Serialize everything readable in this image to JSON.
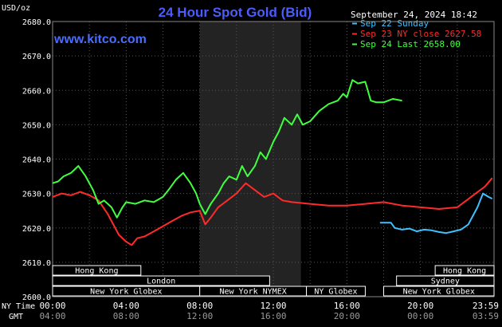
{
  "chart_data": {
    "type": "line",
    "title": "24 Hour Spot Gold (Bid)",
    "website": "www.kitco.com",
    "unit_label": "USD/oz",
    "timestamp": "September 24, 2024 18:42",
    "ylim": [
      2600,
      2680
    ],
    "y_ticks": [
      "2680.0",
      "2670.0",
      "2660.0",
      "2650.0",
      "2640.0",
      "2630.0",
      "2620.0",
      "2610.0",
      "2600.0"
    ],
    "xlim": [
      0,
      24
    ],
    "x_ticks": [
      {
        "hour": 0,
        "ny": "00:00",
        "gmt": "04:00"
      },
      {
        "hour": 4,
        "ny": "04:00",
        "gmt": "08:00"
      },
      {
        "hour": 8,
        "ny": "08:00",
        "gmt": "12:00"
      },
      {
        "hour": 12,
        "ny": "12:00",
        "gmt": "16:00"
      },
      {
        "hour": 16,
        "ny": "16:00",
        "gmt": "20:00"
      },
      {
        "hour": 20,
        "ny": "20:00",
        "gmt": "00:00"
      },
      {
        "hour": 24,
        "ny": "23:59",
        "gmt": "03:59"
      }
    ],
    "x_row_labels": {
      "ny": "NY Time",
      "gmt": "GMT"
    },
    "highlight_range": [
      8,
      13.5
    ],
    "grid": true,
    "legend_position": "top-right",
    "series": [
      {
        "name": "Sep 22 Sunday",
        "color": "#40c0ff",
        "x": [
          17.8,
          18.4,
          18.6,
          19.0,
          19.4,
          19.8,
          20.2,
          20.6,
          21.0,
          21.4,
          21.8,
          22.2,
          22.6,
          22.9,
          23.1,
          23.4,
          23.7,
          23.9
        ],
        "y": [
          2621.5,
          2621.5,
          2620.0,
          2619.5,
          2619.8,
          2619.0,
          2619.5,
          2619.3,
          2618.8,
          2618.5,
          2619.0,
          2619.5,
          2621.0,
          2624.0,
          2626.0,
          2630.0,
          2629.0,
          2628.5
        ]
      },
      {
        "name": "Sep 23 NY close 2627.58",
        "color": "#ff2a2a",
        "x": [
          0,
          0.5,
          1.0,
          1.5,
          2.0,
          2.5,
          3.0,
          3.3,
          3.6,
          4.0,
          4.3,
          4.6,
          5.0,
          5.5,
          6.0,
          6.5,
          7.0,
          7.5,
          8.0,
          8.3,
          8.6,
          9.0,
          9.5,
          10.0,
          10.5,
          11.0,
          11.5,
          12.0,
          12.5,
          13.0,
          14.0,
          15.0,
          16.0,
          17.0,
          18.0,
          19.0,
          20.0,
          21.0,
          22.0,
          22.5,
          23.0,
          23.5,
          23.9
        ],
        "y": [
          2629.0,
          2630.0,
          2629.5,
          2630.5,
          2629.5,
          2628.0,
          2624.0,
          2621.0,
          2618.0,
          2616.0,
          2615.0,
          2617.0,
          2617.5,
          2619.0,
          2620.5,
          2622.0,
          2623.5,
          2624.5,
          2625.0,
          2621.0,
          2623.0,
          2626.0,
          2628.0,
          2630.0,
          2633.0,
          2631.0,
          2629.0,
          2630.0,
          2628.0,
          2627.5,
          2627.0,
          2626.5,
          2626.5,
          2627.0,
          2627.5,
          2626.5,
          2626.0,
          2625.5,
          2626.0,
          2628.0,
          2630.0,
          2632.0,
          2634.5
        ]
      },
      {
        "name": "Sep 24 Last 2658.00",
        "color": "#40ff40",
        "x": [
          0,
          0.3,
          0.6,
          1.0,
          1.4,
          1.8,
          2.2,
          2.5,
          2.8,
          3.2,
          3.5,
          3.8,
          4.0,
          4.5,
          5.0,
          5.5,
          6.0,
          6.3,
          6.7,
          7.1,
          7.5,
          7.8,
          8.0,
          8.3,
          8.6,
          9.0,
          9.3,
          9.6,
          10.0,
          10.3,
          10.6,
          11.0,
          11.3,
          11.6,
          12.0,
          12.3,
          12.6,
          13.0,
          13.3,
          13.6,
          14.0,
          14.5,
          15.0,
          15.5,
          15.8,
          16.0,
          16.3,
          16.6,
          17.0,
          17.3,
          17.6,
          18.0,
          18.5,
          19.0
        ],
        "y": [
          2633.0,
          2633.5,
          2635.0,
          2636.0,
          2638.0,
          2635.0,
          2631.0,
          2627.0,
          2628.0,
          2626.0,
          2623.0,
          2626.0,
          2627.5,
          2627.0,
          2628.0,
          2627.5,
          2629.0,
          2631.0,
          2634.0,
          2636.0,
          2633.0,
          2630.0,
          2627.0,
          2624.0,
          2627.0,
          2630.0,
          2633.0,
          2635.0,
          2634.0,
          2638.0,
          2635.0,
          2638.0,
          2642.0,
          2640.0,
          2645.0,
          2648.0,
          2652.0,
          2650.0,
          2653.0,
          2650.0,
          2651.0,
          2654.0,
          2656.0,
          2657.0,
          2659.0,
          2658.0,
          2663.0,
          2662.0,
          2662.5,
          2657.0,
          2656.5,
          2656.5,
          2657.5,
          2657.0
        ]
      }
    ],
    "sessions": [
      {
        "label": "Hong Kong",
        "start": 0,
        "end": 4.8,
        "row": 0
      },
      {
        "label": "London",
        "start": 0,
        "end": 11.8,
        "row": 1
      },
      {
        "label": "New York Globex",
        "start": 0,
        "end": 8,
        "row": 2
      },
      {
        "label": "New York NYMEX",
        "start": 8,
        "end": 13.8,
        "row": 2
      },
      {
        "label": "NY Globex",
        "start": 13.8,
        "end": 17,
        "row": 2
      },
      {
        "label": "Hong Kong",
        "start": 20.8,
        "end": 24,
        "row": 0
      },
      {
        "label": "Sydney",
        "start": 18.7,
        "end": 24,
        "row": 1
      },
      {
        "label": "New York Globex",
        "start": 18,
        "end": 24,
        "row": 2
      }
    ]
  }
}
